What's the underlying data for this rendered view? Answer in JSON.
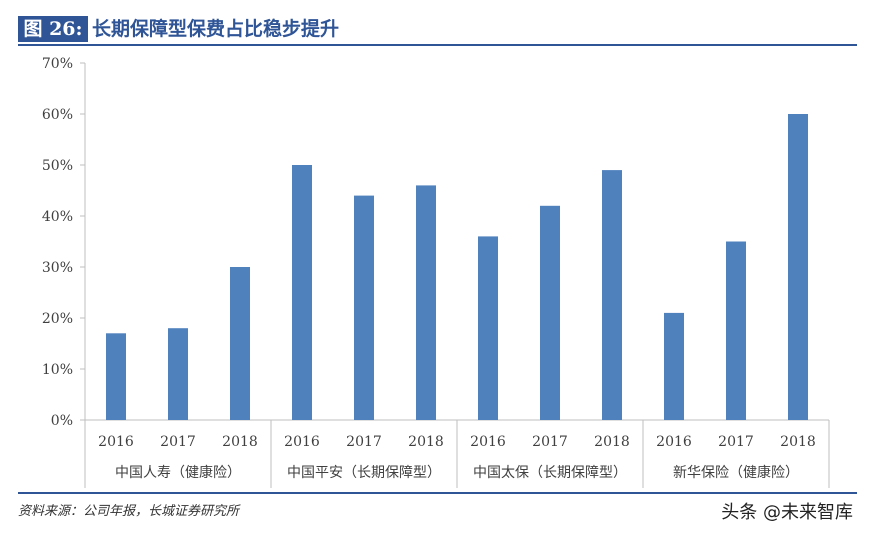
{
  "figure": {
    "label": "图 26:",
    "title": "长期保障型保费占比稳步提升"
  },
  "source": "资料来源：公司年报，长城证券研究所",
  "watermark": "头条 @未来智库",
  "colors": {
    "bar": "#4f81bd",
    "accent": "#2f5597",
    "axis": "#bfbfbf"
  },
  "chart_data": {
    "type": "bar",
    "title": "长期保障型保费占比稳步提升",
    "ylabel": "",
    "xlabel": "",
    "ylim": [
      0,
      70
    ],
    "yticks": [
      "0%",
      "10%",
      "20%",
      "30%",
      "40%",
      "50%",
      "60%",
      "70%"
    ],
    "ytick_values": [
      0,
      10,
      20,
      30,
      40,
      50,
      60,
      70
    ],
    "grid": false,
    "groups": [
      {
        "name": "中国人寿（健康险）",
        "categories": [
          "2016",
          "2017",
          "2018"
        ],
        "values": [
          17,
          18,
          30
        ]
      },
      {
        "name": "中国平安（长期保障型）",
        "categories": [
          "2016",
          "2017",
          "2018"
        ],
        "values": [
          50,
          44,
          46
        ]
      },
      {
        "name": "中国太保（长期保障型）",
        "categories": [
          "2016",
          "2017",
          "2018"
        ],
        "values": [
          36,
          42,
          49
        ]
      },
      {
        "name": "新华保险（健康险）",
        "categories": [
          "2016",
          "2017",
          "2018"
        ],
        "values": [
          21,
          35,
          60
        ]
      }
    ]
  }
}
